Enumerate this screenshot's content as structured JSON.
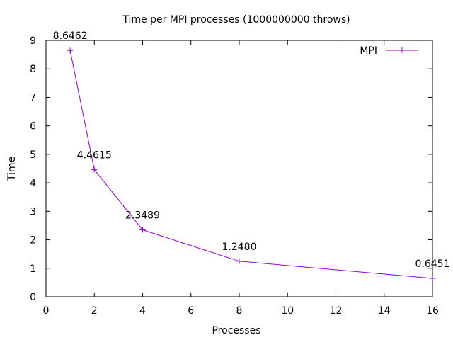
{
  "chart_data": {
    "type": "line",
    "title": "Time per MPI processes (1000000000 throws)",
    "xlabel": "Processes",
    "ylabel": "Time",
    "xlim": [
      0,
      16
    ],
    "ylim": [
      0,
      9
    ],
    "xticks": [
      0,
      2,
      4,
      6,
      8,
      10,
      12,
      14,
      16
    ],
    "yticks": [
      0,
      1,
      2,
      3,
      4,
      5,
      6,
      7,
      8,
      9
    ],
    "grid": false,
    "legend_position": "top-right",
    "series": [
      {
        "name": "MPI",
        "color": "#9400d3",
        "marker": "plus",
        "x": [
          1,
          2,
          4,
          8,
          16
        ],
        "y": [
          8.6462,
          4.4615,
          2.3489,
          1.248,
          0.6451
        ],
        "labels": [
          "8.6462",
          "4.4615",
          "2.3489",
          "1.2480",
          "0.6451"
        ]
      }
    ]
  }
}
